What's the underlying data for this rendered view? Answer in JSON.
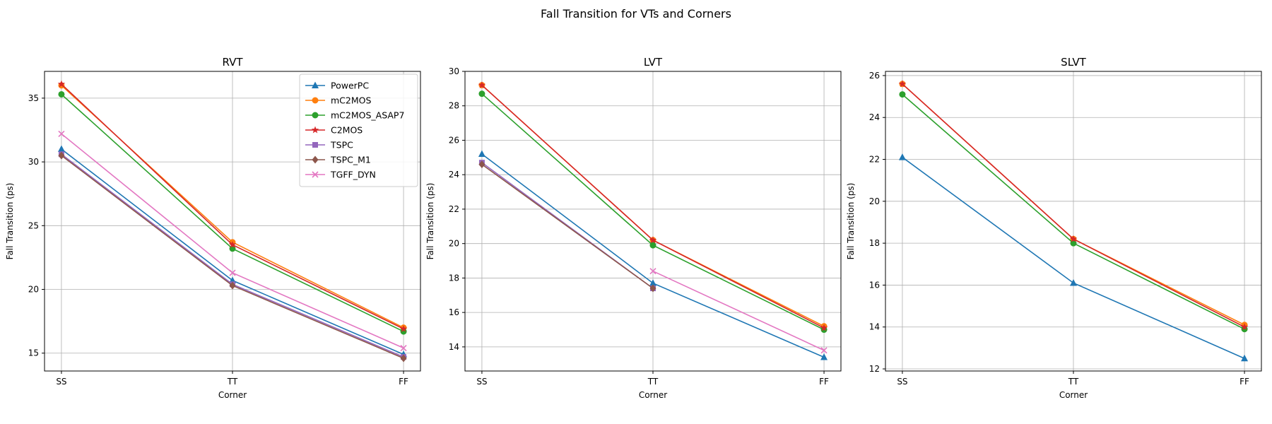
{
  "figure": {
    "suptitle": "Fall Transition for VTs and Corners"
  },
  "colors": {
    "PowerPC": "#1f77b4",
    "mC2MOS": "#ff7f0e",
    "mC2MOS_ASAP7": "#2ca02c",
    "C2MOS": "#d62728",
    "TSPC": "#9467bd",
    "TSPC_M1": "#8c564b",
    "TGFF_DYN": "#e377c2"
  },
  "markers": {
    "PowerPC": "triangle",
    "mC2MOS": "circle",
    "mC2MOS_ASAP7": "circle",
    "C2MOS": "star",
    "TSPC": "square",
    "TSPC_M1": "diamond",
    "TGFF_DYN": "x"
  },
  "chart_data": [
    {
      "type": "line",
      "title": "RVT",
      "xlabel": "Corner",
      "ylabel": "Fall Transition (ps)",
      "categories": [
        "SS",
        "TT",
        "FF"
      ],
      "ylim": [
        13.6,
        37.1
      ],
      "yticks": [
        15,
        20,
        25,
        30,
        35
      ],
      "grid": true,
      "legend": "top-right",
      "series": [
        {
          "name": "PowerPC",
          "values": [
            31.0,
            20.7,
            14.9
          ]
        },
        {
          "name": "mC2MOS",
          "values": [
            36.0,
            23.7,
            17.0
          ]
        },
        {
          "name": "mC2MOS_ASAP7",
          "values": [
            35.3,
            23.2,
            16.7
          ]
        },
        {
          "name": "C2MOS",
          "values": [
            36.1,
            23.5,
            16.9
          ]
        },
        {
          "name": "TSPC",
          "values": [
            30.6,
            20.4,
            14.7
          ]
        },
        {
          "name": "TSPC_M1",
          "values": [
            30.5,
            20.3,
            14.6
          ]
        },
        {
          "name": "TGFF_DYN",
          "values": [
            32.2,
            21.3,
            15.4
          ]
        }
      ]
    },
    {
      "type": "line",
      "title": "LVT",
      "xlabel": "Corner",
      "ylabel": "Fall Transition (ps)",
      "categories": [
        "SS",
        "TT",
        "FF"
      ],
      "ylim": [
        12.6,
        30.0
      ],
      "yticks": [
        14,
        16,
        18,
        20,
        22,
        24,
        26,
        28,
        30
      ],
      "grid": true,
      "legend": "none",
      "series": [
        {
          "name": "PowerPC",
          "values": [
            25.2,
            17.7,
            13.4
          ]
        },
        {
          "name": "mC2MOS",
          "values": [
            29.2,
            20.2,
            15.2
          ]
        },
        {
          "name": "mC2MOS_ASAP7",
          "values": [
            28.7,
            19.9,
            15.0
          ]
        },
        {
          "name": "C2MOS",
          "values": [
            29.2,
            20.2,
            15.1
          ]
        },
        {
          "name": "TSPC",
          "values": [
            24.7,
            17.4,
            null
          ]
        },
        {
          "name": "TSPC_M1",
          "values": [
            24.6,
            17.4,
            null
          ]
        },
        {
          "name": "TGFF_DYN",
          "values": [
            null,
            18.4,
            13.8
          ]
        }
      ]
    },
    {
      "type": "line",
      "title": "SLVT",
      "xlabel": "Corner",
      "ylabel": "Fall Transition (ps)",
      "categories": [
        "SS",
        "TT",
        "FF"
      ],
      "ylim": [
        11.9,
        26.2
      ],
      "yticks": [
        12,
        14,
        16,
        18,
        20,
        22,
        24,
        26
      ],
      "grid": true,
      "legend": "none",
      "series": [
        {
          "name": "PowerPC",
          "values": [
            22.1,
            16.1,
            12.5
          ]
        },
        {
          "name": "mC2MOS",
          "values": [
            25.6,
            18.2,
            14.1
          ]
        },
        {
          "name": "mC2MOS_ASAP7",
          "values": [
            25.1,
            18.0,
            13.9
          ]
        },
        {
          "name": "C2MOS",
          "values": [
            25.6,
            18.2,
            14.0
          ]
        }
      ]
    }
  ]
}
